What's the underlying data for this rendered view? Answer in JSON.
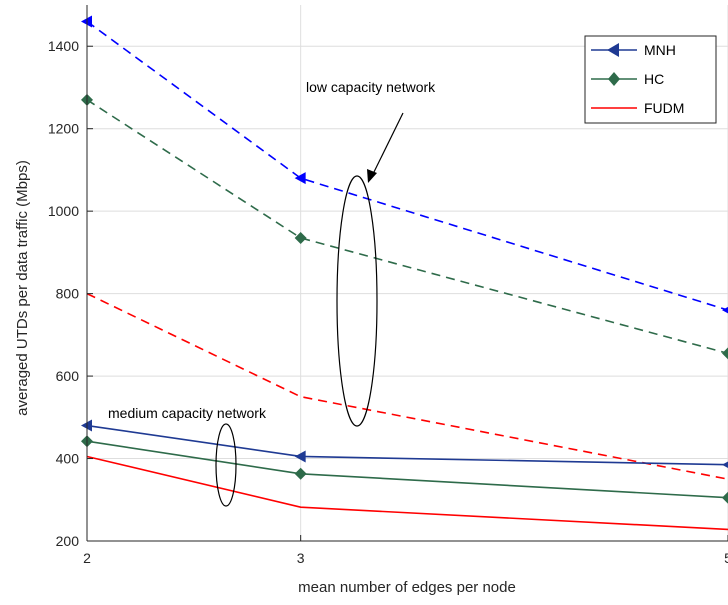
{
  "chart_data": {
    "type": "line",
    "title": "",
    "xlabel": "mean number of edges per node",
    "ylabel": "averaged UTDs per data traffic (Mbps)",
    "xlim": [
      2,
      5
    ],
    "ylim": [
      200,
      1500
    ],
    "xticks": [
      2,
      3,
      5
    ],
    "xtick_labels": [
      "2",
      "3",
      "5"
    ],
    "yticks": [
      200,
      400,
      600,
      800,
      1000,
      1200,
      1400
    ],
    "ytick_labels": [
      "200",
      "400",
      "600",
      "800",
      "1000",
      "1200",
      "1400"
    ],
    "grid": true,
    "legend_position": "top-right",
    "x": [
      2,
      3,
      5
    ],
    "series": [
      {
        "name": "MNH",
        "network": "low capacity",
        "color": "#0000ff",
        "style": "dashed",
        "marker": "triangle-left",
        "values": [
          1460,
          1080,
          760
        ]
      },
      {
        "name": "HC",
        "network": "low capacity",
        "color": "#2e6b4a",
        "style": "dashed",
        "marker": "diamond",
        "values": [
          1270,
          935,
          655
        ]
      },
      {
        "name": "FUDM",
        "network": "low capacity",
        "color": "#ff0000",
        "style": "dashed",
        "marker": "none",
        "values": [
          800,
          550,
          350
        ]
      },
      {
        "name": "MNH",
        "network": "medium capacity",
        "color": "#1f3a93",
        "style": "solid",
        "marker": "triangle-left",
        "values": [
          480,
          405,
          385
        ]
      },
      {
        "name": "HC",
        "network": "medium capacity",
        "color": "#2e6b4a",
        "style": "solid",
        "marker": "diamond",
        "values": [
          442,
          363,
          305
        ]
      },
      {
        "name": "FUDM",
        "network": "medium capacity",
        "color": "#ff0000",
        "style": "solid",
        "marker": "none",
        "values": [
          405,
          282,
          228
        ]
      }
    ],
    "legend": [
      {
        "label": "MNH",
        "color": "#1f3a93",
        "marker": "triangle-left"
      },
      {
        "label": "HC",
        "color": "#2e6b4a",
        "marker": "diamond"
      },
      {
        "label": "FUDM",
        "color": "#ff0000",
        "marker": "none"
      }
    ],
    "annotations": [
      {
        "text": "low capacity network"
      },
      {
        "text": "medium capacity network"
      }
    ]
  }
}
